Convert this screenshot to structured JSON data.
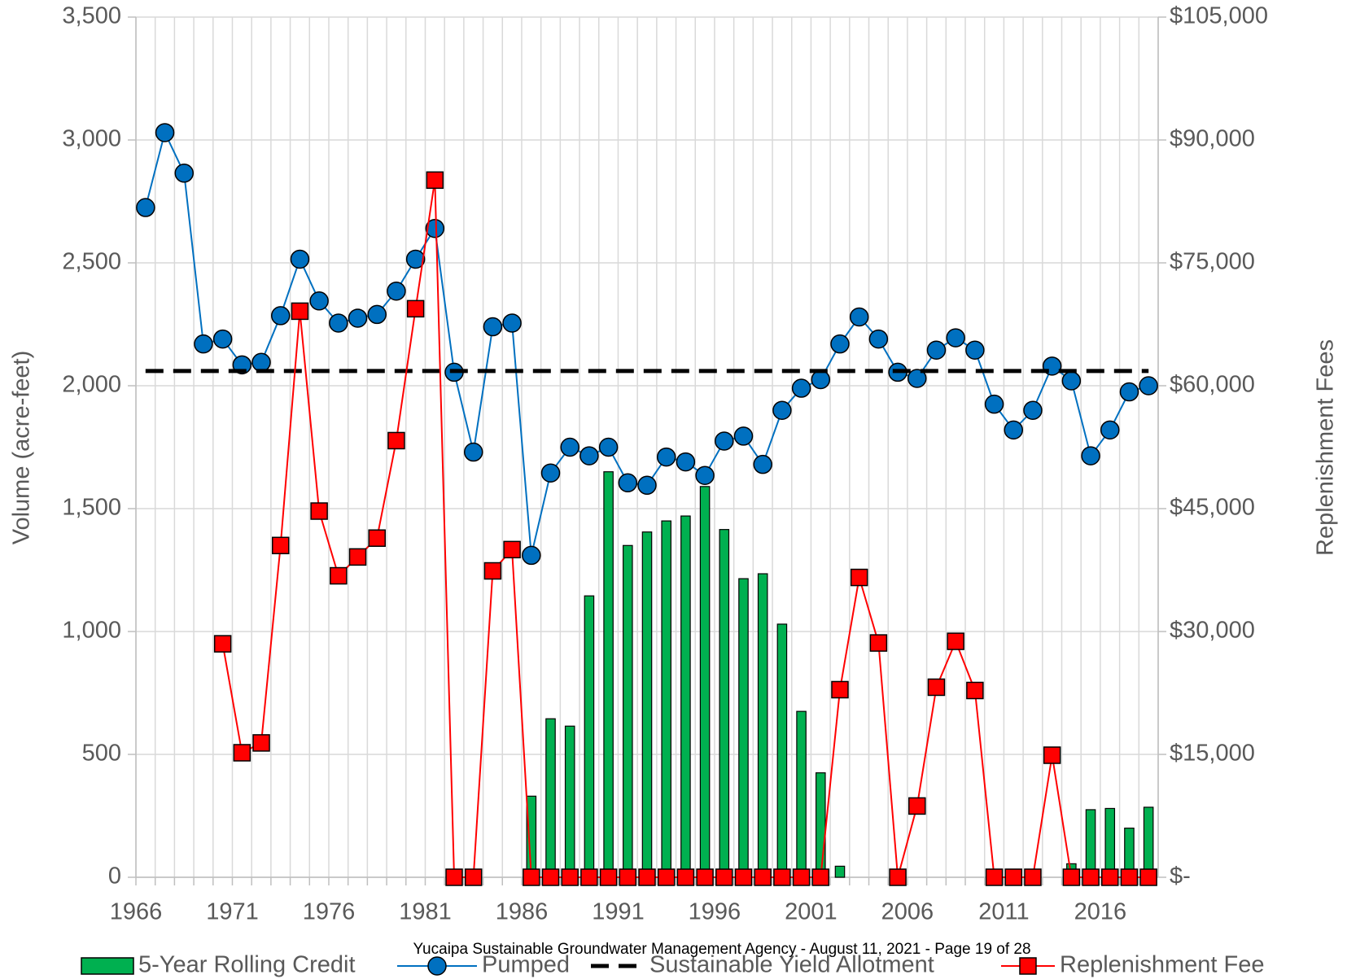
{
  "chart_data": {
    "type": "combo",
    "ylabel": "Volume (acre-feet)",
    "y2label": "Replenishment Fees",
    "footer": "Yucaipa Sustainable Groundwater Management Agency - August 11, 2021 - Page 19 of 28",
    "legend": "bottom",
    "grid": true,
    "categories": [
      "1966",
      null,
      null,
      null,
      null,
      "1971",
      null,
      null,
      null,
      null,
      "1976",
      null,
      null,
      null,
      null,
      "1981",
      null,
      null,
      null,
      null,
      "1986",
      null,
      null,
      null,
      null,
      "1991",
      null,
      null,
      null,
      null,
      "1996",
      null,
      null,
      null,
      null,
      "2001",
      null,
      null,
      null,
      null,
      "2006",
      null,
      null,
      null,
      null,
      "2011",
      null,
      null,
      null,
      null,
      "2016",
      null,
      null
    ],
    "ylim": [
      0,
      3500
    ],
    "yticks": [
      0,
      500,
      {
        "value": 1000,
        "label": "1,000"
      },
      {
        "value": 1500,
        "label": "1,500"
      },
      {
        "value": 2000,
        "label": "2,000"
      },
      {
        "value": 2500,
        "label": "2,500"
      },
      {
        "value": 3000,
        "label": "3,000"
      },
      {
        "value": 3500,
        "label": "3,500"
      }
    ],
    "y2lim": [
      0,
      105000
    ],
    "y2ticks": [
      {
        "value": 0,
        "label": "$-"
      },
      {
        "value": 15000,
        "label": "$15,000"
      },
      {
        "value": 30000,
        "label": "$30,000"
      },
      {
        "value": 45000,
        "label": "$45,000"
      },
      {
        "value": 60000,
        "label": "$60,000"
      },
      {
        "value": 75000,
        "label": "$75,000"
      },
      {
        "value": 90000,
        "label": "$90,000"
      },
      {
        "value": 105000,
        "label": "$105,000"
      }
    ],
    "series": [
      {
        "name": "5-Year Rolling Credit",
        "type": "bar",
        "color": "#00b050",
        "values": [
          null,
          null,
          null,
          null,
          null,
          null,
          null,
          null,
          null,
          null,
          null,
          null,
          null,
          null,
          null,
          null,
          null,
          null,
          null,
          null,
          330,
          645,
          615,
          1145,
          1650,
          1350,
          1405,
          1450,
          1470,
          1590,
          1415,
          1215,
          1235,
          1030,
          675,
          425,
          45,
          null,
          null,
          null,
          null,
          null,
          null,
          null,
          null,
          null,
          null,
          null,
          55,
          275,
          280,
          200,
          285
        ]
      },
      {
        "name": "Pumped",
        "type": "line",
        "color": "#0070c0",
        "marker": "circle",
        "values": [
          2725,
          3030,
          2865,
          2170,
          2190,
          2085,
          2095,
          2285,
          2515,
          2345,
          2255,
          2275,
          2290,
          2385,
          2515,
          2640,
          2055,
          1730,
          2240,
          2255,
          1310,
          1645,
          1750,
          1715,
          1750,
          1605,
          1595,
          1710,
          1690,
          1635,
          1775,
          1795,
          1680,
          1900,
          1990,
          2025,
          2170,
          2280,
          2190,
          2055,
          2030,
          2145,
          2195,
          2145,
          1925,
          1820,
          1900,
          2080,
          2020,
          1715,
          1820,
          1975,
          2000
        ]
      },
      {
        "name": "Sustainable Yield Allotment",
        "type": "line",
        "color": "#000000",
        "dashed": true,
        "values": [
          2060,
          2060,
          2060,
          2060,
          2060,
          2060,
          2060,
          2060,
          2060,
          2060,
          2060,
          2060,
          2060,
          2060,
          2060,
          2060,
          2060,
          2060,
          2060,
          2060,
          2060,
          2060,
          2060,
          2060,
          2060,
          2060,
          2060,
          2060,
          2060,
          2060,
          2060,
          2060,
          2060,
          2060,
          2060,
          2060,
          2060,
          2060,
          2060,
          2060,
          2060,
          2060,
          2060,
          2060,
          2060,
          2060,
          2060,
          2060,
          2060,
          2060,
          2060,
          2060,
          2060
        ]
      },
      {
        "name": "Replenishment Fee",
        "type": "line",
        "color": "#ff0000",
        "marker": "square",
        "axis": "y2",
        "values": [
          null,
          null,
          null,
          null,
          28500,
          15200,
          16400,
          40500,
          69100,
          44700,
          36800,
          39100,
          41400,
          53300,
          69400,
          85100,
          0,
          0,
          37400,
          40000,
          0,
          0,
          0,
          0,
          0,
          0,
          0,
          0,
          0,
          0,
          0,
          0,
          0,
          0,
          0,
          0,
          22900,
          36600,
          28600,
          0,
          8700,
          23200,
          28800,
          22800,
          0,
          0,
          0,
          14900,
          0,
          0,
          0,
          0,
          0
        ]
      }
    ]
  }
}
